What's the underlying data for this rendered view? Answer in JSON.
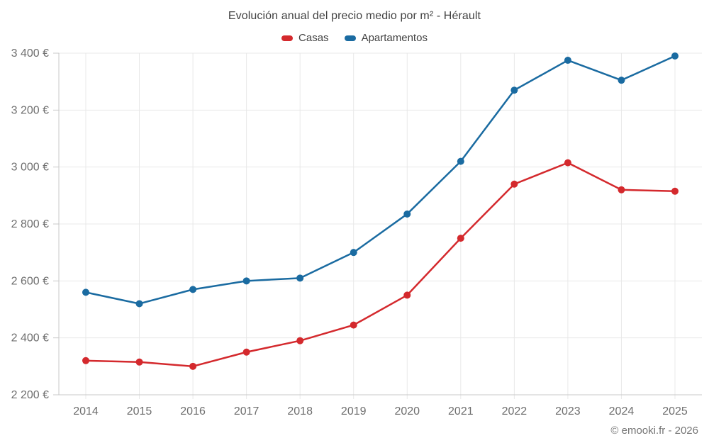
{
  "title": "Evolución anual del precio medio por m² - Hérault",
  "attribution": "© emooki.fr - 2026",
  "theme": {
    "background": "#ffffff",
    "grid": "#e8e8e8",
    "axis": "#c9c9c9",
    "label": "#6e6e6e",
    "title_color": "#424242",
    "attribution_color": "#757575"
  },
  "chart_data": {
    "type": "line",
    "title": "Evolución anual del precio medio por m² - Hérault",
    "xlabel": "",
    "ylabel": "",
    "x": [
      "2014",
      "2015",
      "2016",
      "2017",
      "2018",
      "2019",
      "2020",
      "2021",
      "2022",
      "2023",
      "2024",
      "2025"
    ],
    "series": [
      {
        "name": "Casas",
        "color": "#d4292d",
        "values": [
          2320,
          2315,
          2300,
          2350,
          2390,
          2445,
          2550,
          2750,
          2940,
          3015,
          2920,
          2915
        ]
      },
      {
        "name": "Apartamentos",
        "color": "#1a6ba1",
        "values": [
          2560,
          2520,
          2570,
          2600,
          2610,
          2700,
          2835,
          3020,
          3270,
          3375,
          3305,
          3390
        ]
      }
    ],
    "ylim": [
      2200,
      3400
    ],
    "ytick_values": [
      2200,
      2400,
      2600,
      2800,
      3000,
      3200,
      3400
    ],
    "ytick_labels": [
      "2 200 €",
      "2 400 €",
      "2 600 €",
      "2 800 €",
      "3 000 €",
      "3 200 €",
      "3 400 €"
    ],
    "currency": "€",
    "grid": true,
    "legend_position": "top",
    "marker": "circle"
  }
}
